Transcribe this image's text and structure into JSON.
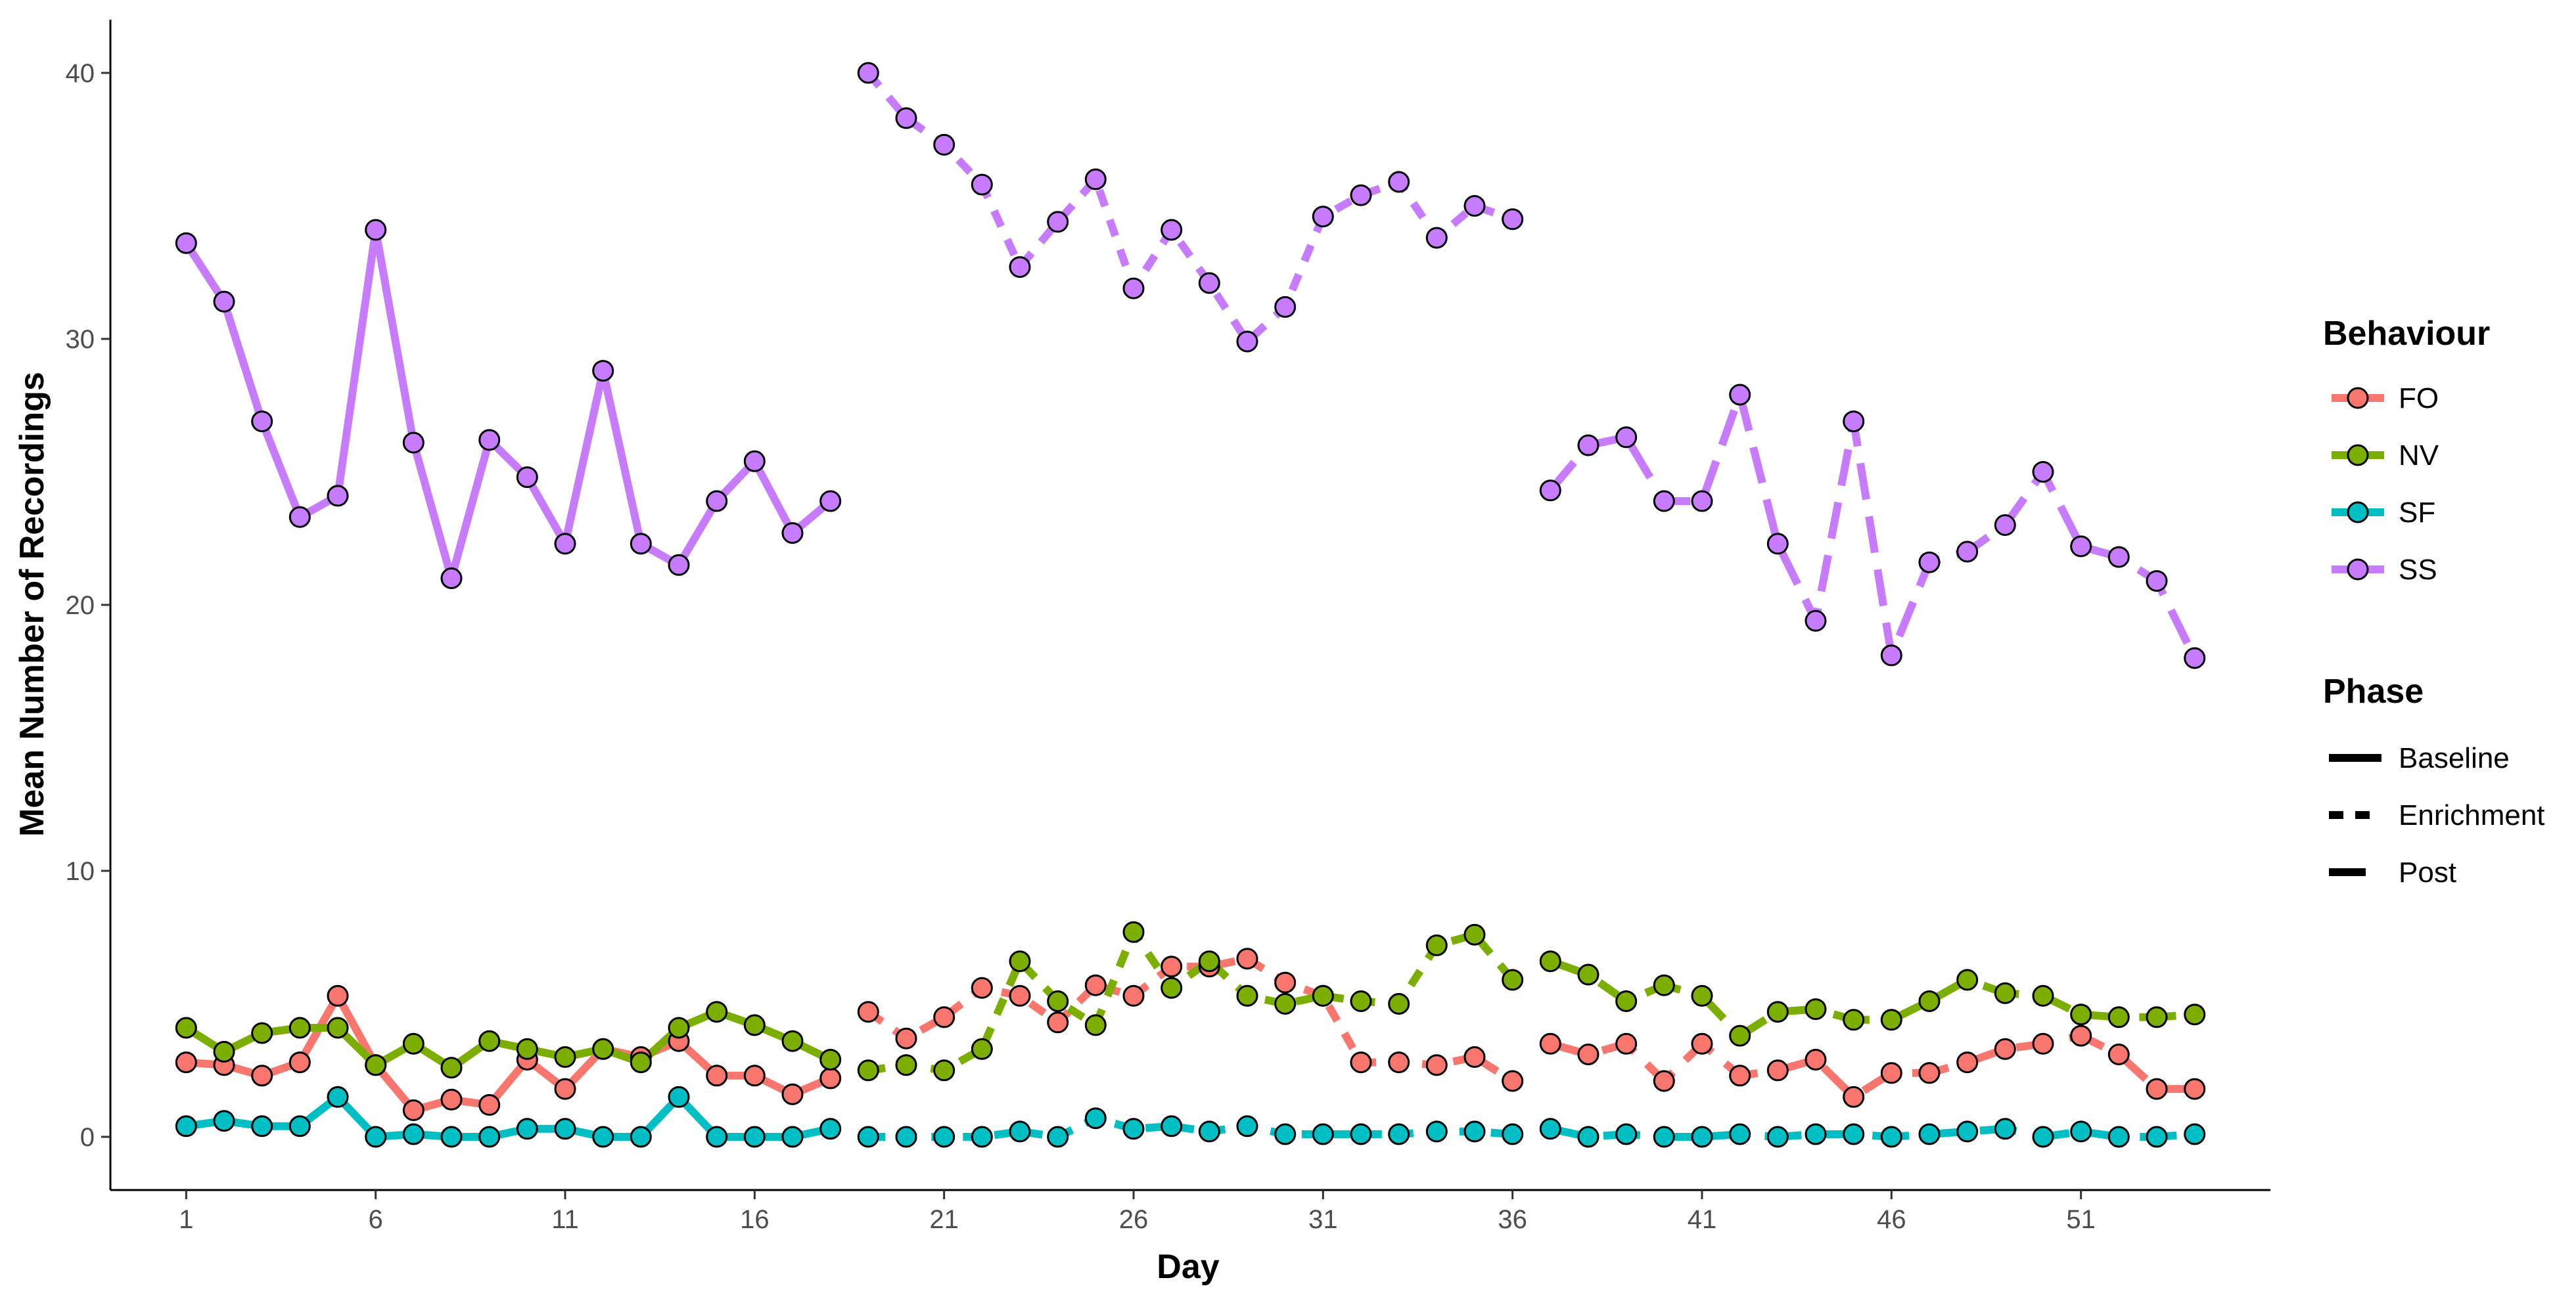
{
  "chart_data": {
    "type": "line",
    "title": "",
    "xlabel": "Day",
    "ylabel": "Mean Number of Recordings",
    "xlim": [
      -1,
      56
    ],
    "ylim": [
      -2,
      42
    ],
    "x_ticks": [
      1,
      6,
      11,
      16,
      21,
      26,
      31,
      36,
      41,
      46,
      51
    ],
    "y_ticks": [
      0,
      10,
      20,
      30,
      40
    ],
    "grid": false,
    "legend_placement": "right",
    "x": [
      1,
      2,
      3,
      4,
      5,
      6,
      7,
      8,
      9,
      10,
      11,
      12,
      13,
      14,
      15,
      16,
      17,
      18,
      19,
      20,
      21,
      22,
      23,
      24,
      25,
      26,
      27,
      28,
      29,
      30,
      31,
      32,
      33,
      34,
      35,
      36,
      37,
      38,
      39,
      40,
      41,
      42,
      43,
      44,
      45,
      46,
      47,
      48,
      49,
      50,
      51,
      52,
      53,
      54
    ],
    "phases": [
      {
        "name": "Baseline",
        "start": 1,
        "end": 18,
        "dash": "solid"
      },
      {
        "name": "Enrichment",
        "start": 19,
        "end": 36,
        "dash": "dotted"
      },
      {
        "name": "Post",
        "start": 37,
        "end": 54,
        "dash": "dashed"
      }
    ],
    "series": [
      {
        "name": "FO",
        "color": "#F8766D",
        "values": [
          2.8,
          2.7,
          2.3,
          2.8,
          5.3,
          2.7,
          1.0,
          1.4,
          1.2,
          2.9,
          1.8,
          3.3,
          3.0,
          3.6,
          2.3,
          2.3,
          1.6,
          2.2,
          4.7,
          3.7,
          4.5,
          5.6,
          5.3,
          4.3,
          5.7,
          5.3,
          6.4,
          6.4,
          6.7,
          5.8,
          5.3,
          2.8,
          2.8,
          2.7,
          3.0,
          2.1,
          3.5,
          3.1,
          3.5,
          2.1,
          3.5,
          2.3,
          2.5,
          2.9,
          1.5,
          2.4,
          2.4,
          2.8,
          3.3,
          3.5,
          3.8,
          3.1,
          1.8,
          1.8
        ]
      },
      {
        "name": "NV",
        "color": "#7CAE00",
        "values": [
          4.1,
          3.2,
          3.9,
          4.1,
          4.1,
          2.7,
          3.5,
          2.6,
          3.6,
          3.3,
          3.0,
          3.3,
          2.8,
          4.1,
          4.7,
          4.2,
          3.6,
          2.9,
          2.5,
          2.7,
          2.5,
          3.3,
          6.6,
          5.1,
          4.2,
          7.7,
          5.6,
          6.6,
          5.3,
          5.0,
          5.3,
          5.1,
          5.0,
          7.2,
          7.6,
          5.9,
          6.6,
          6.1,
          5.1,
          5.7,
          5.3,
          3.8,
          4.7,
          4.8,
          4.4,
          4.4,
          5.1,
          5.9,
          5.4,
          5.3,
          4.6,
          4.5,
          4.5,
          4.6
        ]
      },
      {
        "name": "SF",
        "color": "#00BFC4",
        "values": [
          0.4,
          0.6,
          0.4,
          0.4,
          1.5,
          0.0,
          0.1,
          0.0,
          0.0,
          0.3,
          0.3,
          0.0,
          0.0,
          1.5,
          0.0,
          0.0,
          0.0,
          0.3,
          0.0,
          0.0,
          0.0,
          0.0,
          0.2,
          0.0,
          0.7,
          0.3,
          0.4,
          0.2,
          0.4,
          0.1,
          0.1,
          0.1,
          0.1,
          0.2,
          0.2,
          0.1,
          0.3,
          0.0,
          0.1,
          0.0,
          0.0,
          0.1,
          0.0,
          0.1,
          0.1,
          0.0,
          0.1,
          0.2,
          0.3,
          0.0,
          0.2,
          0.0,
          0.0,
          0.1
        ]
      },
      {
        "name": "SS",
        "color": "#C77CFF",
        "values": [
          33.6,
          31.4,
          26.9,
          23.3,
          24.1,
          34.1,
          26.1,
          21.0,
          26.2,
          24.8,
          22.3,
          28.8,
          22.3,
          21.5,
          23.9,
          25.4,
          22.7,
          23.9,
          40.0,
          38.3,
          37.3,
          35.8,
          32.7,
          34.4,
          36.0,
          31.9,
          34.1,
          32.1,
          29.9,
          31.2,
          34.6,
          35.4,
          35.9,
          33.8,
          35.0,
          34.5,
          24.3,
          26.0,
          26.3,
          23.9,
          23.9,
          27.9,
          22.3,
          19.4,
          26.9,
          18.1,
          21.6,
          22.0,
          23.0,
          25.0,
          22.2,
          21.8,
          20.9,
          18.0
        ]
      }
    ]
  },
  "legend": {
    "behaviour_title": "Behaviour",
    "behaviour_items": [
      "FO",
      "NV",
      "SF",
      "SS"
    ],
    "phase_title": "Phase",
    "phase_items": [
      "Baseline",
      "Enrichment",
      "Post"
    ]
  }
}
